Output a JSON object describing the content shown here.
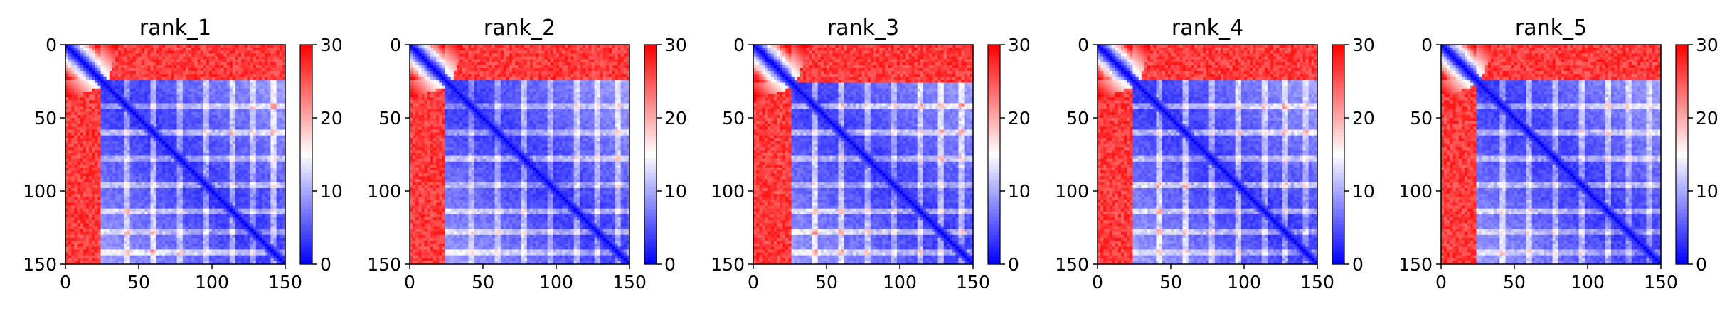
{
  "figure": {
    "panels": [
      {
        "title": "rank_1"
      },
      {
        "title": "rank_2"
      },
      {
        "title": "rank_3"
      },
      {
        "title": "rank_4"
      },
      {
        "title": "rank_5"
      }
    ]
  },
  "chart_data": {
    "type": "heatmap",
    "colormap": "bwr",
    "colormap_colors": {
      "low": "#0000ff",
      "mid": "#ffffff",
      "high": "#ff0000"
    },
    "color_range": [
      0,
      30
    ],
    "colorbar_ticks": [
      "0",
      "10",
      "20",
      "30"
    ],
    "x_range": [
      0,
      150
    ],
    "y_range": [
      0,
      150
    ],
    "y_inverted": true,
    "x_ticks": [
      "0",
      "50",
      "100",
      "150"
    ],
    "y_ticks": [
      "0",
      "50",
      "100",
      "150"
    ],
    "matrix_size": 150,
    "description_of_structure": {
      "n_terminal_segment_end": 25,
      "band_rows": [
        42,
        60,
        78,
        96,
        114,
        128,
        142
      ],
      "strong_band_row": 43
    },
    "panels": [
      {
        "title": "rank_1",
        "segment_end": 25,
        "band_strength": 0.45
      },
      {
        "title": "rank_2",
        "segment_end": 25,
        "band_strength": 0.45
      },
      {
        "title": "rank_3",
        "segment_end": 26,
        "band_strength": 0.45
      },
      {
        "title": "rank_4",
        "segment_end": 25,
        "band_strength": 0.5
      },
      {
        "title": "rank_5",
        "segment_end": 24,
        "band_strength": 0.6
      }
    ]
  }
}
